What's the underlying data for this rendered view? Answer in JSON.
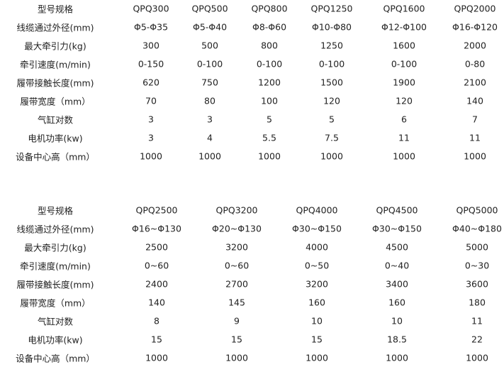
{
  "tables": [
    {
      "rows": [
        [
          "型号规格",
          "QPQ300",
          "QPQ500",
          "QPQ800",
          "QPQ1250",
          "QPQ1600",
          "QPQ2000"
        ],
        [
          "线缆通过外径(mm)",
          "Φ5-Φ35",
          "Φ5-Φ40",
          "Φ8-Φ60",
          "Φ10-Φ80",
          "Φ12-Φ100",
          "Φ16-Φ120"
        ],
        [
          "最大牵引力(kg)",
          "300",
          "500",
          "800",
          "1250",
          "1600",
          "2000"
        ],
        [
          "牵引速度(m/min)",
          "0-150",
          "0-100",
          "0-100",
          "0-100",
          "0-100",
          "0-80"
        ],
        [
          "履带接触长度(mm)",
          "620",
          "750",
          "1200",
          "1500",
          "1900",
          "2100"
        ],
        [
          "履带宽度（mm）",
          "70",
          "80",
          "100",
          "120",
          "120",
          "140"
        ],
        [
          "气缸对数",
          "3",
          "3",
          "5",
          "5",
          "6",
          "7"
        ],
        [
          "电机功率(kw)",
          "3",
          "4",
          "5.5",
          "7.5",
          "11",
          "11"
        ],
        [
          "设备中心高（mm）",
          "1000",
          "1000",
          "1000",
          "1000",
          "1000",
          "1000"
        ]
      ]
    },
    {
      "rows": [
        [
          "型号规格",
          "QPQ2500",
          "QPQ3200",
          "QPQ4000",
          "QPQ4500",
          "QPQ5000"
        ],
        [
          "线缆通过外径(mm)",
          "Φ16~Φ130",
          "Φ20~Φ130",
          "Φ30~Φ150",
          "Φ30~Φ150",
          "Φ40~Φ180"
        ],
        [
          "最大牵引力(kg)",
          "2500",
          "3200",
          "4000",
          "4500",
          "5000"
        ],
        [
          "牵引速度(m/min)",
          "0~60",
          "0~60",
          "0~50",
          "0~40",
          "0~30"
        ],
        [
          "履带接触长度(mm)",
          "2400",
          "2700",
          "3200",
          "3400",
          "3600"
        ],
        [
          "履带宽度（mm）",
          "140",
          "145",
          "160",
          "160",
          "180"
        ],
        [
          "气缸对数",
          "8",
          "9",
          "10",
          "10",
          "11"
        ],
        [
          "电机功率(kw)",
          "15",
          "15",
          "15",
          "18.5",
          "22"
        ],
        [
          "设备中心高（mm）",
          "1000",
          "1000",
          "1000",
          "1000",
          "1000"
        ]
      ]
    }
  ]
}
